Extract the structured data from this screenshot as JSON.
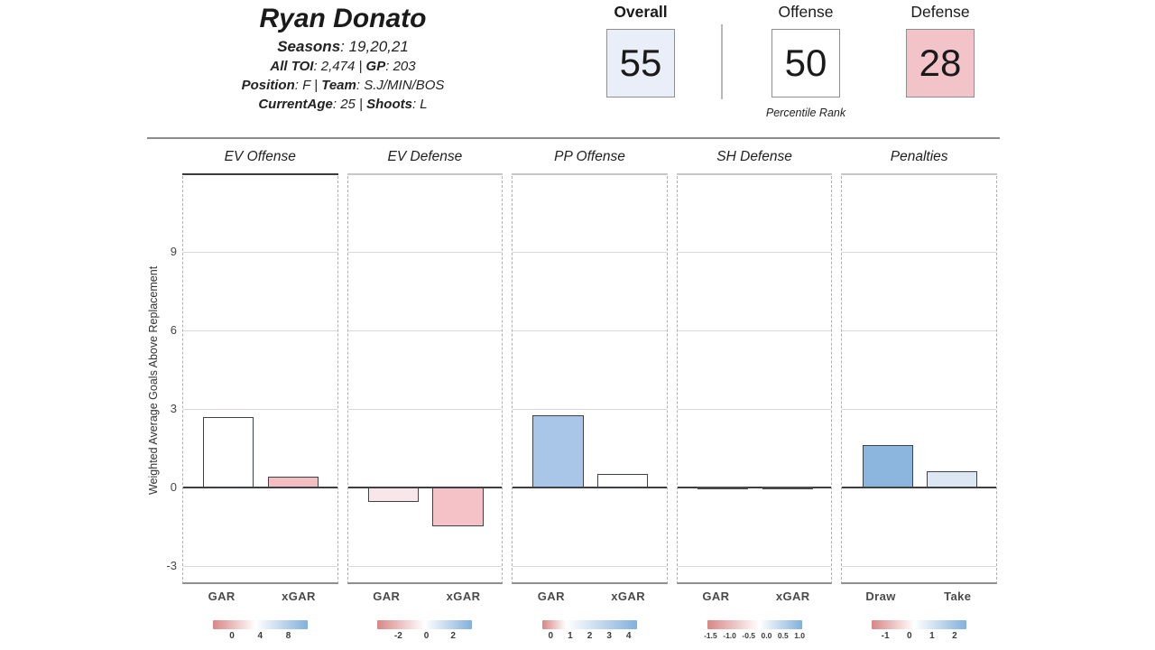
{
  "player": {
    "name": "Ryan Donato",
    "seasons_label": "Seasons",
    "seasons_value": ": 19,20,21",
    "toi_label": "All TOI",
    "toi_value": ": 2,474",
    "sep1": " | ",
    "gp_label": "GP",
    "gp_value": ": 203",
    "position_label": "Position",
    "position_value": ": F",
    "sep2": " | ",
    "team_label": "Team",
    "team_value": ": S.J/MIN/BOS",
    "age_label": "CurrentAge",
    "age_value": ": 25",
    "sep3": " | ",
    "shoots_label": "Shoots",
    "shoots_value": ": L"
  },
  "percentiles": {
    "caption": "Percentile Rank",
    "items": [
      {
        "label": "Overall",
        "value": "55",
        "bg": "#e9eef8",
        "bold": true
      },
      {
        "label": "Offense",
        "value": "50",
        "bg": "#ffffff",
        "bold": false
      },
      {
        "label": "Defense",
        "value": "28",
        "bg": "#f2c3c9",
        "bold": false
      }
    ]
  },
  "chart_data": {
    "type": "bar",
    "ylabel": "Weighted Average Goals Above Replacement",
    "yticks": [
      -3,
      0,
      3,
      6,
      9
    ],
    "ylim": [
      -3.7,
      11.9
    ],
    "grid": true,
    "panels": [
      {
        "title": "EV Offense",
        "selected": true,
        "categories": [
          "GAR",
          "xGAR"
        ],
        "values": [
          2.7,
          0.4
        ],
        "bar_colors": [
          "#ffffff",
          "#f3bdc2"
        ],
        "legend": {
          "ticks": [
            "0",
            "4",
            "8"
          ],
          "white_pos": 45
        }
      },
      {
        "title": "EV Defense",
        "selected": false,
        "categories": [
          "GAR",
          "xGAR"
        ],
        "values": [
          -0.55,
          -1.5
        ],
        "bar_colors": [
          "#f8e6e8",
          "#f4c2c7"
        ],
        "legend": {
          "ticks": [
            "-2",
            "0",
            "2"
          ],
          "white_pos": 50
        }
      },
      {
        "title": "PP Offense",
        "selected": false,
        "categories": [
          "GAR",
          "xGAR"
        ],
        "values": [
          2.75,
          0.5
        ],
        "bar_colors": [
          "#a9c6e8",
          "#ffffff"
        ],
        "legend": {
          "ticks": [
            "0",
            "1",
            "2",
            "3",
            "4"
          ],
          "white_pos": 25
        }
      },
      {
        "title": "SH Defense",
        "selected": false,
        "categories": [
          "GAR",
          "xGAR"
        ],
        "values": [
          0.0,
          0.0
        ],
        "bar_colors": [
          "#4a4a4a",
          "#4a4a4a"
        ],
        "legend": {
          "ticks": [
            "-1.5",
            "-1.0",
            "-0.5",
            "0.0",
            "0.5",
            "1.0"
          ],
          "white_pos": 55
        }
      },
      {
        "title": "Penalties",
        "selected": false,
        "categories": [
          "Draw",
          "Take"
        ],
        "values": [
          1.6,
          0.6
        ],
        "bar_colors": [
          "#8db6de",
          "#dde7f3"
        ],
        "legend": {
          "ticks": [
            "-1",
            "0",
            "1",
            "2"
          ],
          "white_pos": 45
        }
      }
    ],
    "colors": {
      "legend_red": "#d98989",
      "legend_blue": "#85b2dc",
      "bar_outline": "#3d4349",
      "zero_line": "#3f3f3f",
      "gridline": "#d9d9d9"
    }
  }
}
